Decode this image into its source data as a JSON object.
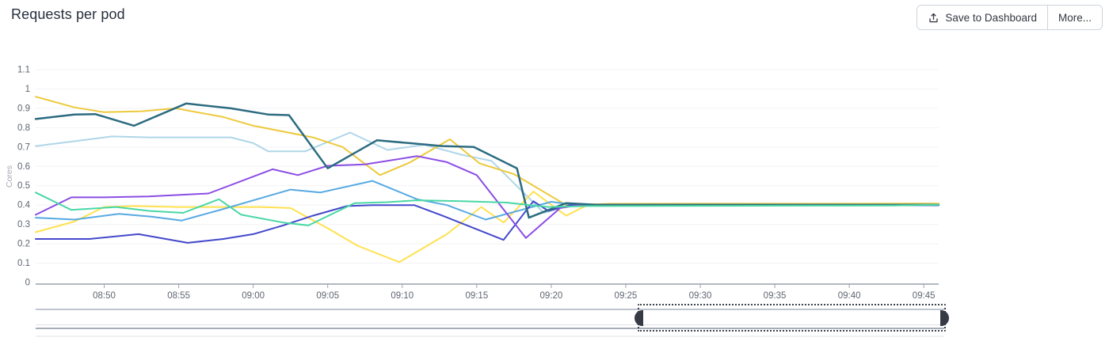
{
  "header": {
    "title": "Requests per pod",
    "save_button_label": "Save to Dashboard",
    "more_button_label": "More..."
  },
  "chart_data": {
    "type": "line",
    "title": "Requests per pod",
    "xlabel": "",
    "ylabel": "Cores",
    "ylim": [
      0,
      1.1
    ],
    "grid": true,
    "legend": "none",
    "x_domain": [
      45.4,
      106
    ],
    "x_ticks": [
      {
        "t": 50,
        "label": "08:50"
      },
      {
        "t": 55,
        "label": "08:55"
      },
      {
        "t": 60,
        "label": "09:00"
      },
      {
        "t": 65,
        "label": "09:05"
      },
      {
        "t": 70,
        "label": "09:10"
      },
      {
        "t": 75,
        "label": "09:15"
      },
      {
        "t": 80,
        "label": "09:20"
      },
      {
        "t": 85,
        "label": "09:25"
      },
      {
        "t": 90,
        "label": "09:30"
      },
      {
        "t": 95,
        "label": "09:35"
      },
      {
        "t": 100,
        "label": "09:40"
      },
      {
        "t": 105,
        "label": "09:45"
      }
    ],
    "y_ticks": [
      {
        "v": 0,
        "label": "0"
      },
      {
        "v": 0.1,
        "label": "0.1"
      },
      {
        "v": 0.2,
        "label": "0.2"
      },
      {
        "v": 0.3,
        "label": "0.3"
      },
      {
        "v": 0.4,
        "label": "0.4"
      },
      {
        "v": 0.5,
        "label": "0.5"
      },
      {
        "v": 0.6,
        "label": "0.6"
      },
      {
        "v": 0.7,
        "label": "0.7"
      },
      {
        "v": 0.8,
        "label": "0.8"
      },
      {
        "v": 0.9,
        "label": "0.9"
      },
      {
        "v": 1,
        "label": "1"
      },
      {
        "v": 1.1,
        "label": "1.1"
      }
    ],
    "series": [
      {
        "name": "pale-blue",
        "color": "#AFD6E8",
        "width": 2,
        "points": [
          [
            45.4,
            0.705
          ],
          [
            48,
            0.73
          ],
          [
            50.5,
            0.755
          ],
          [
            53,
            0.75
          ],
          [
            56,
            0.75
          ],
          [
            58.5,
            0.75
          ],
          [
            60,
            0.72
          ],
          [
            61,
            0.678
          ],
          [
            63.5,
            0.678
          ],
          [
            66.5,
            0.775
          ],
          [
            69,
            0.685
          ],
          [
            71.5,
            0.712
          ],
          [
            74,
            0.66
          ],
          [
            76,
            0.628
          ],
          [
            79.5,
            0.36
          ],
          [
            81.3,
            0.4
          ],
          [
            106,
            0.4
          ]
        ]
      },
      {
        "name": "gold",
        "color": "#EDC93C",
        "width": 2,
        "points": [
          [
            45.4,
            0.96
          ],
          [
            48,
            0.905
          ],
          [
            50,
            0.88
          ],
          [
            52.5,
            0.885
          ],
          [
            54.8,
            0.9
          ],
          [
            58,
            0.855
          ],
          [
            60,
            0.81
          ],
          [
            64,
            0.75
          ],
          [
            66,
            0.7
          ],
          [
            68.5,
            0.555
          ],
          [
            70.5,
            0.62
          ],
          [
            73.2,
            0.74
          ],
          [
            75.2,
            0.615
          ],
          [
            77.5,
            0.56
          ],
          [
            81,
            0.4
          ],
          [
            84,
            0.407
          ],
          [
            106,
            0.408
          ]
        ]
      },
      {
        "name": "bright-yellow",
        "color": "#FFE14F",
        "width": 2,
        "points": [
          [
            45.4,
            0.26
          ],
          [
            48,
            0.315
          ],
          [
            50,
            0.39
          ],
          [
            52,
            0.395
          ],
          [
            55,
            0.39
          ],
          [
            58,
            0.39
          ],
          [
            60.5,
            0.39
          ],
          [
            62.5,
            0.385
          ],
          [
            65,
            0.28
          ],
          [
            67,
            0.19
          ],
          [
            69.8,
            0.105
          ],
          [
            73,
            0.25
          ],
          [
            75.3,
            0.39
          ],
          [
            76.8,
            0.31
          ],
          [
            78.8,
            0.47
          ],
          [
            81,
            0.345
          ],
          [
            82.5,
            0.403
          ],
          [
            106,
            0.405
          ]
        ]
      },
      {
        "name": "sky-blue",
        "color": "#57A9E2",
        "width": 2,
        "points": [
          [
            45.4,
            0.335
          ],
          [
            48,
            0.325
          ],
          [
            51,
            0.355
          ],
          [
            53.2,
            0.34
          ],
          [
            55.2,
            0.32
          ],
          [
            58,
            0.38
          ],
          [
            62.5,
            0.48
          ],
          [
            64.5,
            0.465
          ],
          [
            68,
            0.525
          ],
          [
            71,
            0.43
          ],
          [
            73,
            0.4
          ],
          [
            75.6,
            0.325
          ],
          [
            78,
            0.375
          ],
          [
            80,
            0.417
          ],
          [
            81.7,
            0.4
          ],
          [
            106,
            0.4
          ]
        ]
      },
      {
        "name": "royal-blue",
        "color": "#4348CB",
        "width": 2,
        "points": [
          [
            45.4,
            0.225
          ],
          [
            49,
            0.225
          ],
          [
            52.3,
            0.25
          ],
          [
            55.6,
            0.205
          ],
          [
            58,
            0.225
          ],
          [
            60,
            0.25
          ],
          [
            62,
            0.295
          ],
          [
            64,
            0.345
          ],
          [
            66.3,
            0.395
          ],
          [
            68,
            0.4
          ],
          [
            70.8,
            0.4
          ],
          [
            72.7,
            0.345
          ],
          [
            76.8,
            0.22
          ],
          [
            78.8,
            0.42
          ],
          [
            79.8,
            0.37
          ],
          [
            81.3,
            0.4
          ],
          [
            106,
            0.399
          ]
        ]
      },
      {
        "name": "purple",
        "color": "#8B4DE4",
        "width": 2,
        "points": [
          [
            45.4,
            0.35
          ],
          [
            47.8,
            0.44
          ],
          [
            50,
            0.44
          ],
          [
            53,
            0.445
          ],
          [
            57,
            0.46
          ],
          [
            61.3,
            0.585
          ],
          [
            63,
            0.555
          ],
          [
            65,
            0.603
          ],
          [
            67.5,
            0.61
          ],
          [
            71,
            0.653
          ],
          [
            73,
            0.622
          ],
          [
            75,
            0.555
          ],
          [
            78.3,
            0.23
          ],
          [
            80.6,
            0.385
          ],
          [
            82,
            0.401
          ],
          [
            106,
            0.401
          ]
        ]
      },
      {
        "name": "dark-teal",
        "color": "#2C6B80",
        "width": 2.5,
        "points": [
          [
            45.4,
            0.845
          ],
          [
            48,
            0.868
          ],
          [
            49.4,
            0.87
          ],
          [
            52,
            0.81
          ],
          [
            55.5,
            0.925
          ],
          [
            58.5,
            0.9
          ],
          [
            61,
            0.868
          ],
          [
            62.4,
            0.865
          ],
          [
            65,
            0.59
          ],
          [
            68.3,
            0.735
          ],
          [
            70.5,
            0.72
          ],
          [
            72.7,
            0.705
          ],
          [
            74.8,
            0.7
          ],
          [
            77.7,
            0.59
          ],
          [
            78.5,
            0.335
          ],
          [
            79.5,
            0.365
          ],
          [
            81,
            0.41
          ],
          [
            83,
            0.402
          ],
          [
            106,
            0.402
          ]
        ]
      },
      {
        "name": "mint-green",
        "color": "#49D7A5",
        "width": 2,
        "points": [
          [
            45.4,
            0.465
          ],
          [
            47.8,
            0.375
          ],
          [
            50.8,
            0.39
          ],
          [
            53,
            0.37
          ],
          [
            55.3,
            0.36
          ],
          [
            57.7,
            0.43
          ],
          [
            59.2,
            0.35
          ],
          [
            62,
            0.31
          ],
          [
            63.7,
            0.295
          ],
          [
            66.8,
            0.41
          ],
          [
            69,
            0.415
          ],
          [
            71,
            0.425
          ],
          [
            74,
            0.42
          ],
          [
            77,
            0.413
          ],
          [
            79.8,
            0.39
          ],
          [
            82.5,
            0.395
          ],
          [
            103,
            0.398
          ],
          [
            106,
            0.402
          ]
        ]
      }
    ],
    "brush": {
      "selected_range_fraction": [
        0.663,
        1.0
      ]
    }
  },
  "colors": {
    "axis_line": "#9aa1ac",
    "tick_label": "#5f6570",
    "gridline": "#f2f3f6",
    "y_axis_title": "#a4a9b3",
    "brush_handle": "#353a45"
  }
}
